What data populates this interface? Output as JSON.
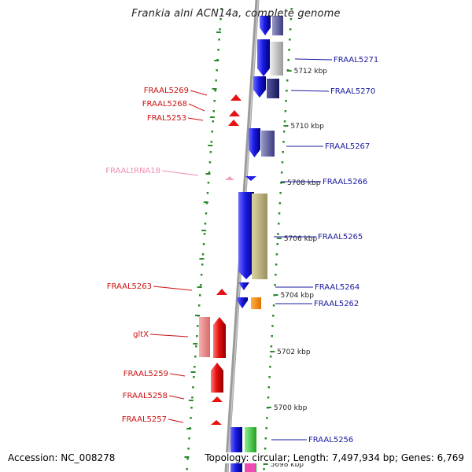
{
  "title": "Frankia alni ACN14a, complete genome",
  "footer": {
    "accession": "Accession: NC_008278",
    "summary": "Topology: circular; Length: 7,497,934 bp; Genes: 6,769"
  },
  "colors": {
    "blue_gene": "#1e1ee6",
    "red_gene": "#e81010",
    "pink_gene": "#f4a0c0",
    "blue_label": "#1a1aa0",
    "red_label": "#cc1010",
    "pink_label": "#f08cb4",
    "backbone": "#888888",
    "tick": "#2a8a2a"
  },
  "scale_labels": [
    "5712 kbp",
    "5710 kbp",
    "5708 kbp",
    "5706 kbp",
    "5704 kbp",
    "5702 kbp",
    "5700 kbp",
    "5698 kbp"
  ],
  "right_genes": [
    "FRAAL5271",
    "FRAAL5270",
    "FRAAL5267",
    "FRAAL5266",
    "FRAAL5265",
    "FRAAL5264",
    "FRAAL5262",
    "FRAAL5256"
  ],
  "left_genes": [
    "FRAAL5269",
    "FRAAL5268",
    "FRAL5253",
    "FRAALtRNA18",
    "FRAAL5263",
    "gltX",
    "FRAAL5259",
    "FRAAL5258",
    "FRAAL5257"
  ]
}
